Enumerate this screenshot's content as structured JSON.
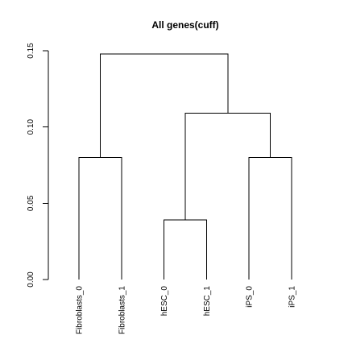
{
  "chart_data": {
    "type": "dendrogram",
    "title": "All genes(cuff)",
    "xlabel": "",
    "ylabel": "",
    "ylim": [
      0,
      0.15
    ],
    "y_ticks": [
      0.0,
      0.05,
      0.1,
      0.15
    ],
    "y_tick_labels": [
      "0.00",
      "0.05",
      "0.10",
      "0.15"
    ],
    "grid": false,
    "leaves": [
      "Fibroblasts_0",
      "Fibroblasts_1",
      "hESC_0",
      "hESC_1",
      "iPS_0",
      "iPS_1"
    ],
    "merges": [
      {
        "id": "m1",
        "left": "hESC_0",
        "right": "hESC_1",
        "height": 0.039
      },
      {
        "id": "m2",
        "left": "Fibroblasts_0",
        "right": "Fibroblasts_1",
        "height": 0.08
      },
      {
        "id": "m3",
        "left": "iPS_0",
        "right": "iPS_1",
        "height": 0.08
      },
      {
        "id": "m4",
        "left": "m1",
        "right": "m3",
        "height": 0.109
      },
      {
        "id": "m5",
        "left": "m2",
        "right": "m4",
        "height": 0.148
      }
    ]
  }
}
